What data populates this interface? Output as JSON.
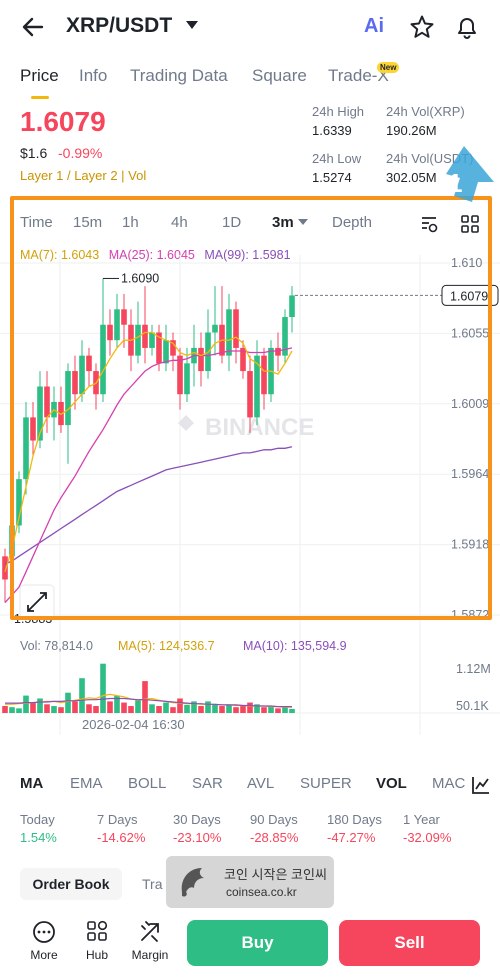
{
  "header": {
    "pair": "XRP/USDT",
    "ai_label": "Ai"
  },
  "tabs": [
    {
      "label": "Price",
      "active": true
    },
    {
      "label": "Info"
    },
    {
      "label": "Trading Data"
    },
    {
      "label": "Square"
    },
    {
      "label": "Trade-X",
      "badge": "New"
    }
  ],
  "ticker": {
    "price": "1.6079",
    "fiat": "$1.6",
    "change": "-0.99%",
    "tags": "Layer 1 / Layer 2  |  Vol",
    "high_label": "24h High",
    "high": "1.6339",
    "vol_xrp_label": "24h Vol(XRP)",
    "vol_xrp": "190.26M",
    "low_label": "24h Low",
    "low": "1.5274",
    "vol_usdt_label": "24h Vol(USDT)",
    "vol_usdt": "302.05M"
  },
  "chart_tabs": {
    "time": "Time",
    "m15": "15m",
    "h1": "1h",
    "h4": "4h",
    "d1": "1D",
    "m3": "3m",
    "depth": "Depth"
  },
  "ma": {
    "ma7": "MA(7): 1.6043",
    "ma25": "MA(25): 1.6045",
    "ma99": "MA(99): 1.5981"
  },
  "colors": {
    "up": "#2ebd85",
    "down": "#f6465d",
    "ma7": "#f0b90b",
    "ma25": "#d63fb0",
    "ma99": "#8a4fb8",
    "accent": "#f7931a"
  },
  "chart_data": {
    "type": "candlestick",
    "y_ticks": [
      "1.610",
      "1.6055",
      "1.6009",
      "1.5964",
      "1.5918",
      "1.5872"
    ],
    "high_label": "1.6090",
    "low_label": "1.5883",
    "last_price_label": "1.6079",
    "watermark": "BINANCE",
    "volume": {
      "vol": "Vol: 78,814.0",
      "ma5": "MA(5): 124,536.7",
      "ma10": "MA(10): 135,594.9",
      "ticks": [
        "1.12M",
        "50.1K"
      ]
    },
    "x_label": "2026-02-04 16:30",
    "candles": [
      [
        1.5895,
        1.591,
        1.588,
        1.5915,
        0
      ],
      [
        1.591,
        1.593,
        1.5905,
        1.594,
        1
      ],
      [
        1.593,
        1.596,
        1.5925,
        1.5965,
        1
      ],
      [
        1.596,
        1.6,
        1.595,
        1.601,
        1
      ],
      [
        1.6,
        1.5985,
        1.5975,
        1.601,
        0
      ],
      [
        1.5985,
        1.602,
        1.598,
        1.603,
        1
      ],
      [
        1.602,
        1.6,
        1.599,
        1.603,
        0
      ],
      [
        1.6,
        1.601,
        1.5985,
        1.602,
        1
      ],
      [
        1.601,
        1.5995,
        1.599,
        1.602,
        0
      ],
      [
        1.5995,
        1.603,
        1.597,
        1.6035,
        1
      ],
      [
        1.603,
        1.6015,
        1.6005,
        1.604,
        0
      ],
      [
        1.6015,
        1.604,
        1.601,
        1.605,
        1
      ],
      [
        1.604,
        1.603,
        1.602,
        1.6045,
        0
      ],
      [
        1.603,
        1.6015,
        1.6005,
        1.6035,
        0
      ],
      [
        1.6015,
        1.606,
        1.601,
        1.609,
        1
      ],
      [
        1.606,
        1.605,
        1.604,
        1.607,
        0
      ],
      [
        1.605,
        1.607,
        1.6045,
        1.608,
        1
      ],
      [
        1.607,
        1.606,
        1.6045,
        1.608,
        0
      ],
      [
        1.606,
        1.604,
        1.603,
        1.607,
        0
      ],
      [
        1.604,
        1.606,
        1.6035,
        1.6075,
        1
      ],
      [
        1.606,
        1.6045,
        1.6035,
        1.6085,
        0
      ],
      [
        1.6045,
        1.6055,
        1.604,
        1.606,
        1
      ],
      [
        1.6055,
        1.6035,
        1.603,
        1.606,
        0
      ],
      [
        1.6035,
        1.605,
        1.603,
        1.606,
        1
      ],
      [
        1.605,
        1.604,
        1.603,
        1.6055,
        0
      ],
      [
        1.604,
        1.6015,
        1.6005,
        1.6045,
        0
      ],
      [
        1.6015,
        1.6035,
        1.601,
        1.6045,
        1
      ],
      [
        1.6035,
        1.6045,
        1.602,
        1.606,
        1
      ],
      [
        1.6045,
        1.603,
        1.602,
        1.6055,
        0
      ],
      [
        1.603,
        1.6055,
        1.6025,
        1.607,
        1
      ],
      [
        1.6055,
        1.606,
        1.604,
        1.6085,
        1
      ],
      [
        1.606,
        1.604,
        1.6035,
        1.6085,
        0
      ],
      [
        1.604,
        1.607,
        1.603,
        1.608,
        1
      ],
      [
        1.607,
        1.6045,
        1.6035,
        1.6075,
        0
      ],
      [
        1.6045,
        1.603,
        1.6025,
        1.605,
        0
      ],
      [
        1.603,
        1.6,
        1.599,
        1.604,
        0
      ],
      [
        1.6,
        1.604,
        1.5995,
        1.605,
        1
      ],
      [
        1.604,
        1.6015,
        1.6005,
        1.6045,
        0
      ],
      [
        1.6015,
        1.6045,
        1.601,
        1.605,
        1
      ],
      [
        1.6045,
        1.604,
        1.603,
        1.6055,
        0
      ],
      [
        1.604,
        1.6065,
        1.6035,
        1.607,
        1
      ],
      [
        1.6065,
        1.6079,
        1.6055,
        1.6085,
        1
      ]
    ],
    "ma7_line": [
      1.59,
      1.5915,
      1.5935,
      1.5955,
      1.5975,
      1.599,
      1.6,
      1.6005,
      1.6002,
      1.6005,
      1.601,
      1.6015,
      1.602,
      1.6022,
      1.603,
      1.6038,
      1.6045,
      1.605,
      1.605,
      1.6052,
      1.6055,
      1.6055,
      1.6052,
      1.605,
      1.6048,
      1.6042,
      1.604,
      1.6042,
      1.604,
      1.6042,
      1.6048,
      1.605,
      1.605,
      1.6052,
      1.6048,
      1.6038,
      1.6035,
      1.603,
      1.603,
      1.6028,
      1.6035,
      1.6043
    ],
    "ma25_line": [
      1.588,
      1.5885,
      1.589,
      1.59,
      1.591,
      1.592,
      1.593,
      1.594,
      1.5948,
      1.5955,
      1.5962,
      1.597,
      1.5978,
      1.5985,
      1.5992,
      1.6,
      1.6008,
      1.6015,
      1.602,
      1.6025,
      1.603,
      1.6033,
      1.6035,
      1.6036,
      1.6037,
      1.6037,
      1.6038,
      1.604,
      1.604,
      1.604,
      1.6041,
      1.6042,
      1.6043,
      1.6043,
      1.6043,
      1.6042,
      1.6042,
      1.6042,
      1.6043,
      1.6043,
      1.6044,
      1.6045
    ],
    "ma99_line": [
      1.5905,
      1.5907,
      1.591,
      1.5913,
      1.5916,
      1.5919,
      1.5922,
      1.5925,
      1.5928,
      1.5931,
      1.5934,
      1.5937,
      1.594,
      1.5943,
      1.5946,
      1.5949,
      1.5952,
      1.5954,
      1.5956,
      1.5958,
      1.596,
      1.5962,
      1.5964,
      1.5966,
      1.5967,
      1.5968,
      1.5969,
      1.597,
      1.5971,
      1.5972,
      1.5973,
      1.5974,
      1.5975,
      1.5976,
      1.5977,
      1.5977,
      1.5978,
      1.5979,
      1.5979,
      1.598,
      1.598,
      1.5981
    ],
    "volumes": [
      0.12,
      0.1,
      0.08,
      0.3,
      0.18,
      0.25,
      0.15,
      0.12,
      0.1,
      0.35,
      0.2,
      0.6,
      0.15,
      0.12,
      0.85,
      0.2,
      0.3,
      0.18,
      0.12,
      0.22,
      0.55,
      0.15,
      0.12,
      0.18,
      0.1,
      0.25,
      0.14,
      0.2,
      0.12,
      0.2,
      0.15,
      0.12,
      0.14,
      0.1,
      0.12,
      0.18,
      0.15,
      0.1,
      0.12,
      0.08,
      0.1,
      0.07
    ],
    "vol_ma5": [
      0.15,
      0.15,
      0.16,
      0.17,
      0.18,
      0.19,
      0.2,
      0.2,
      0.18,
      0.2,
      0.22,
      0.24,
      0.26,
      0.25,
      0.3,
      0.32,
      0.3,
      0.28,
      0.24,
      0.22,
      0.24,
      0.25,
      0.22,
      0.2,
      0.18,
      0.17,
      0.16,
      0.16,
      0.15,
      0.15,
      0.15,
      0.14,
      0.14,
      0.13,
      0.13,
      0.12,
      0.12,
      0.12,
      0.11,
      0.11,
      0.1,
      0.1
    ],
    "vol_ma10": [
      0.17,
      0.17,
      0.17,
      0.18,
      0.18,
      0.19,
      0.19,
      0.2,
      0.2,
      0.21,
      0.21,
      0.22,
      0.23,
      0.23,
      0.24,
      0.25,
      0.25,
      0.25,
      0.24,
      0.23,
      0.23,
      0.22,
      0.21,
      0.2,
      0.19,
      0.18,
      0.17,
      0.16,
      0.16,
      0.15,
      0.15,
      0.14,
      0.14,
      0.14,
      0.13,
      0.13,
      0.12,
      0.12,
      0.12,
      0.11,
      0.11,
      0.11
    ]
  },
  "indicators": [
    "MA",
    "EMA",
    "BOLL",
    "SAR",
    "AVL",
    "SUPER",
    "VOL",
    "MAC"
  ],
  "performance": [
    {
      "label": "Today",
      "value": "1.54%",
      "up": true
    },
    {
      "label": "7 Days",
      "value": "-14.62%"
    },
    {
      "label": "30 Days",
      "value": "-23.10%"
    },
    {
      "label": "90 Days",
      "value": "-28.85%"
    },
    {
      "label": "180 Days",
      "value": "-47.27%"
    },
    {
      "label": "1 Year",
      "value": "-32.09%"
    }
  ],
  "bottom_tabs": {
    "order_book": "Order Book",
    "trades": "Tra"
  },
  "watermark": {
    "line1": "코인 시작은 코인씨",
    "line2": "coinsea.co.kr"
  },
  "annotation": "1",
  "footer": {
    "more": "More",
    "hub": "Hub",
    "margin": "Margin",
    "buy": "Buy",
    "sell": "Sell"
  }
}
